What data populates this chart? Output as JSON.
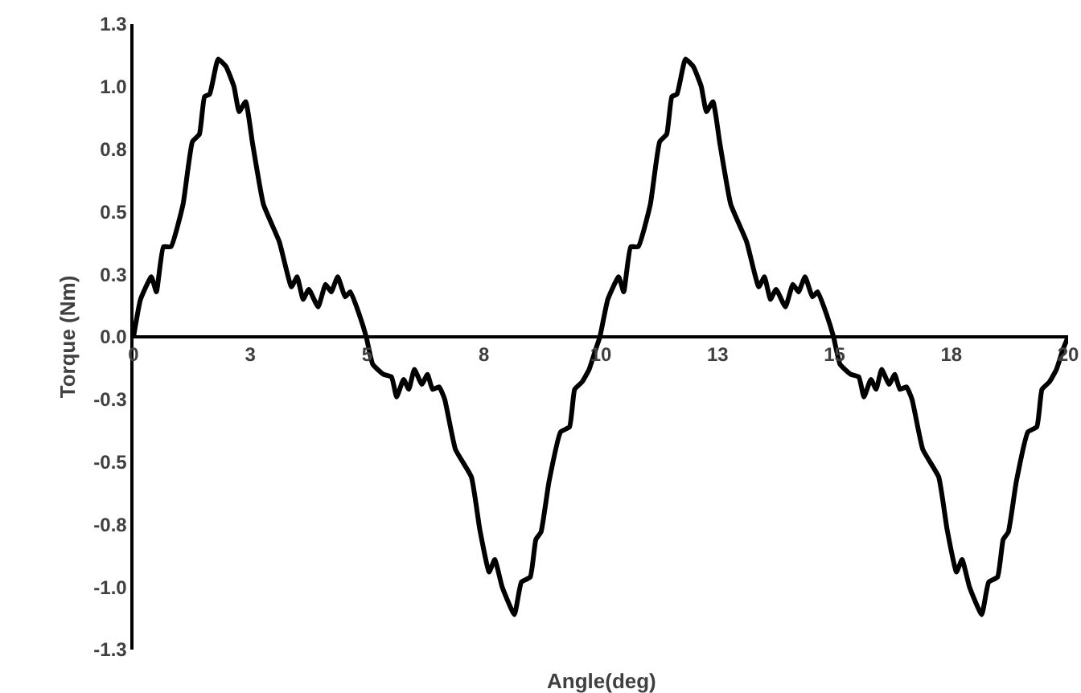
{
  "chart_data": {
    "type": "line",
    "xlabel": "Angle(deg)",
    "ylabel": "Torque (Nm)",
    "xlim": [
      0,
      20
    ],
    "ylim": [
      -1.25,
      1.25
    ],
    "xticks": [
      0,
      {
        "value": 2.5,
        "label": "3"
      },
      5,
      {
        "value": 7.5,
        "label": "8"
      },
      10,
      {
        "value": 12.5,
        "label": "13"
      },
      15,
      {
        "value": 17.5,
        "label": "18"
      },
      20
    ],
    "yticks": [
      {
        "value": 1.25,
        "label": "1.3"
      },
      {
        "value": 1,
        "label": "1.0"
      },
      {
        "value": 0.75,
        "label": "0.8"
      },
      {
        "value": 0.5,
        "label": "0.5"
      },
      {
        "value": 0.25,
        "label": "0.3"
      },
      {
        "value": 0,
        "label": "0.0"
      },
      {
        "value": -0.25,
        "label": "-0.3"
      },
      {
        "value": -0.5,
        "label": "-0.5"
      },
      {
        "value": -0.75,
        "label": "-0.8"
      },
      {
        "value": -1,
        "label": "-1.0"
      },
      {
        "value": -1.25,
        "label": "-1.3"
      }
    ],
    "grid": false,
    "marker": "none",
    "line_style": "solid",
    "series": [
      {
        "color": "#000000",
        "x": [
          0,
          0.15,
          0.38,
          0.49,
          0.64,
          0.8,
          1.06,
          1.26,
          1.41,
          1.52,
          1.63,
          1.81,
          1.98,
          2.15,
          2.26,
          2.4,
          2.55,
          2.78,
          3.12,
          3.38,
          3.5,
          3.63,
          3.75,
          3.95,
          4.11,
          4.23,
          4.37,
          4.53,
          4.64,
          4.83,
          4.98,
          5.12,
          5.35,
          5.52,
          5.63,
          5.78,
          5.89,
          6.01,
          6.17,
          6.29,
          6.4,
          6.54,
          6.66,
          6.89,
          7.23,
          7.41,
          7.61,
          7.73,
          7.89,
          8.15,
          8.3,
          8.49,
          8.61,
          8.72,
          8.89,
          9.14,
          9.33,
          9.44,
          9.6,
          9.75,
          9.89,
          9.98,
          10.15,
          10.38,
          10.49,
          10.64,
          10.8,
          11.06,
          11.26,
          11.41,
          11.52,
          11.63,
          11.81,
          11.98,
          12.15,
          12.26,
          12.4,
          12.55,
          12.78,
          13.12,
          13.38,
          13.5,
          13.63,
          13.75,
          13.95,
          14.11,
          14.23,
          14.37,
          14.53,
          14.64,
          14.83,
          14.98,
          15.12,
          15.35,
          15.52,
          15.63,
          15.78,
          15.89,
          16.01,
          16.17,
          16.29,
          16.4,
          16.54,
          16.66,
          16.89,
          17.23,
          17.41,
          17.61,
          17.73,
          17.89,
          18.15,
          18.3,
          18.49,
          18.61,
          18.72,
          18.89,
          19.14,
          19.33,
          19.44,
          19.6,
          19.75,
          19.89,
          20
        ],
        "values": [
          0,
          0.15,
          0.24,
          0.18,
          0.36,
          0.36,
          0.53,
          0.78,
          0.81,
          0.96,
          0.97,
          1.11,
          1.08,
          1,
          0.9,
          0.94,
          0.77,
          0.53,
          0.38,
          0.2,
          0.24,
          0.15,
          0.19,
          0.12,
          0.21,
          0.18,
          0.24,
          0.16,
          0.18,
          0.09,
          0,
          -0.11,
          -0.15,
          -0.16,
          -0.24,
          -0.17,
          -0.21,
          -0.13,
          -0.19,
          -0.15,
          -0.21,
          -0.2,
          -0.25,
          -0.45,
          -0.56,
          -0.77,
          -0.94,
          -0.89,
          -1,
          -1.11,
          -0.98,
          -0.96,
          -0.81,
          -0.78,
          -0.58,
          -0.38,
          -0.36,
          -0.21,
          -0.18,
          -0.13,
          -0.05,
          0,
          0.15,
          0.24,
          0.18,
          0.36,
          0.36,
          0.53,
          0.78,
          0.81,
          0.96,
          0.97,
          1.11,
          1.08,
          1,
          0.9,
          0.94,
          0.77,
          0.53,
          0.38,
          0.2,
          0.24,
          0.15,
          0.19,
          0.12,
          0.21,
          0.18,
          0.24,
          0.16,
          0.18,
          0.09,
          0,
          -0.11,
          -0.15,
          -0.16,
          -0.24,
          -0.17,
          -0.21,
          -0.13,
          -0.19,
          -0.15,
          -0.21,
          -0.2,
          -0.25,
          -0.45,
          -0.56,
          -0.77,
          -0.94,
          -0.89,
          -1,
          -1.11,
          -0.98,
          -0.96,
          -0.81,
          -0.78,
          -0.58,
          -0.38,
          -0.36,
          -0.21,
          -0.18,
          -0.13,
          -0.05,
          0
        ]
      }
    ]
  }
}
